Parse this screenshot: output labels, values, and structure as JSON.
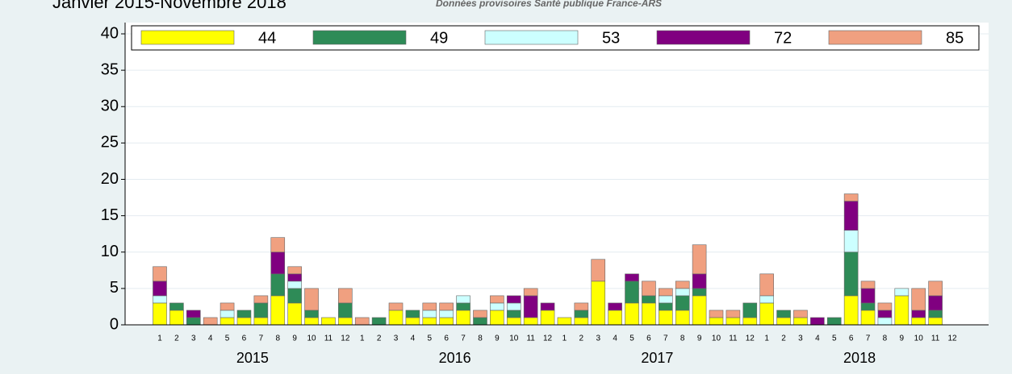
{
  "chart_data": {
    "type": "stacked_bar",
    "title": "Janvier 2015-Novembre 2018",
    "subtitle": "Données provisoires Santé publique France-ARS",
    "categories": [
      "1",
      "2",
      "3",
      "4",
      "5",
      "6",
      "7",
      "8",
      "9",
      "10",
      "11",
      "12",
      "1",
      "2",
      "3",
      "4",
      "5",
      "6",
      "7",
      "8",
      "9",
      "10",
      "11",
      "12",
      "1",
      "2",
      "3",
      "4",
      "5",
      "6",
      "7",
      "8",
      "9",
      "10",
      "11",
      "12",
      "1",
      "2",
      "3",
      "4",
      "5",
      "6",
      "7",
      "8",
      "9",
      "10",
      "11",
      "12"
    ],
    "groups": [
      "2015",
      "2016",
      "2017",
      "2018"
    ],
    "series": [
      {
        "name": "44",
        "color": "#ffff00",
        "values": [
          3,
          2,
          0,
          0,
          1,
          1,
          1,
          4,
          3,
          1,
          1,
          1,
          0,
          0,
          2,
          1,
          1,
          1,
          2,
          0,
          2,
          1,
          1,
          2,
          1,
          1,
          6,
          2,
          3,
          3,
          2,
          2,
          4,
          1,
          1,
          1,
          3,
          1,
          1,
          0,
          0,
          4,
          2,
          0,
          4,
          1,
          1,
          0
        ]
      },
      {
        "name": "49",
        "color": "#2e8b57",
        "values": [
          0,
          1,
          1,
          0,
          0,
          1,
          2,
          3,
          2,
          1,
          0,
          2,
          0,
          1,
          0,
          1,
          0,
          0,
          1,
          1,
          0,
          1,
          0,
          0,
          0,
          1,
          0,
          0,
          3,
          1,
          1,
          2,
          1,
          0,
          0,
          2,
          0,
          1,
          0,
          0,
          1,
          6,
          1,
          0,
          0,
          0,
          1,
          0
        ]
      },
      {
        "name": "53",
        "color": "#ccffff",
        "values": [
          1,
          0,
          0,
          0,
          1,
          0,
          0,
          0,
          1,
          0,
          0,
          0,
          0,
          0,
          0,
          0,
          1,
          1,
          1,
          0,
          1,
          1,
          0,
          0,
          0,
          0,
          0,
          0,
          0,
          0,
          1,
          1,
          0,
          0,
          0,
          0,
          1,
          0,
          0,
          0,
          0,
          3,
          0,
          1,
          1,
          0,
          0,
          0
        ]
      },
      {
        "name": "72",
        "color": "#800080",
        "values": [
          2,
          0,
          1,
          0,
          0,
          0,
          0,
          3,
          1,
          0,
          0,
          0,
          0,
          0,
          0,
          0,
          0,
          0,
          0,
          0,
          0,
          1,
          3,
          1,
          0,
          0,
          0,
          1,
          1,
          0,
          0,
          0,
          2,
          0,
          0,
          0,
          0,
          0,
          0,
          1,
          0,
          4,
          2,
          1,
          0,
          1,
          2,
          0
        ]
      },
      {
        "name": "85",
        "color": "#f0a080",
        "values": [
          2,
          0,
          0,
          1,
          1,
          0,
          1,
          2,
          1,
          3,
          0,
          2,
          1,
          0,
          1,
          0,
          1,
          1,
          0,
          1,
          1,
          0,
          1,
          0,
          0,
          1,
          3,
          0,
          0,
          2,
          1,
          1,
          4,
          1,
          1,
          0,
          3,
          0,
          1,
          0,
          0,
          1,
          1,
          1,
          0,
          3,
          2,
          0
        ]
      }
    ],
    "ylim": [
      0,
      40
    ],
    "yticks": [
      0,
      5,
      10,
      15,
      20,
      25,
      30,
      35,
      40
    ],
    "grid": true
  }
}
